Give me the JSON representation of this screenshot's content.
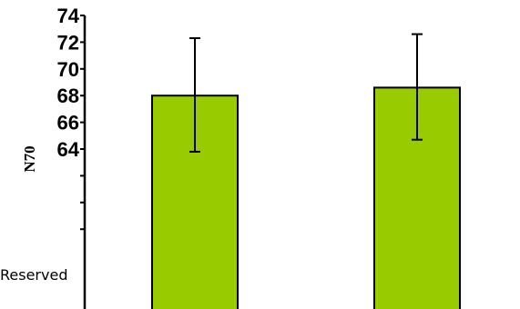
{
  "chart_data": {
    "type": "bar",
    "ylabel": "N70",
    "categories": [
      "",
      ""
    ],
    "values": [
      68.0,
      68.6
    ],
    "error": [
      [
        63.8,
        72.3
      ],
      [
        64.7,
        72.6
      ]
    ],
    "ylim": [
      56.6,
      74.0
    ],
    "yticks": [
      64,
      66,
      68,
      70,
      72,
      74
    ],
    "bar_color": "#99cc00",
    "grid": false,
    "annotation": "Reserved"
  }
}
